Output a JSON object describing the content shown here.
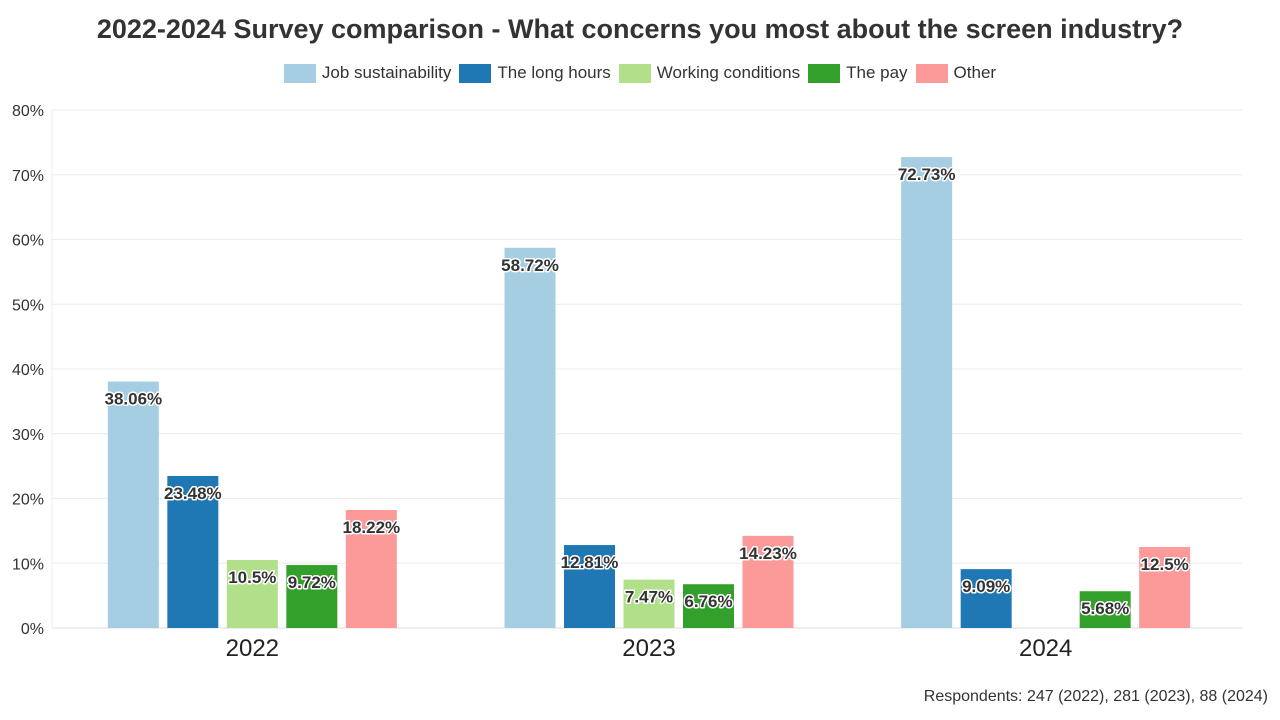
{
  "chart_data": {
    "type": "bar",
    "title": "2022-2024 Survey comparison - What concerns you most about the screen industry?",
    "categories": [
      "2022",
      "2023",
      "2024"
    ],
    "series": [
      {
        "name": "Job sustainability",
        "color": "#a6cee3",
        "values": [
          38.06,
          58.72,
          72.73
        ]
      },
      {
        "name": "The long hours",
        "color": "#1f78b4",
        "values": [
          23.48,
          12.81,
          9.09
        ]
      },
      {
        "name": "Working conditions",
        "color": "#b2df8a",
        "values": [
          10.5,
          7.47,
          null
        ]
      },
      {
        "name": "The pay",
        "color": "#33a02c",
        "values": [
          9.72,
          6.76,
          5.68
        ]
      },
      {
        "name": "Other",
        "color": "#fb9a99",
        "values": [
          18.22,
          14.23,
          12.5
        ]
      }
    ],
    "ylim": [
      0,
      80
    ],
    "yticks": [
      "0%",
      "10%",
      "20%",
      "30%",
      "40%",
      "50%",
      "60%",
      "70%",
      "80%"
    ],
    "grid": true,
    "legend": "top",
    "data_label_suffix": "%",
    "footnote": "Respondents: 247 (2022), 281 (2023), 88 (2024)"
  }
}
